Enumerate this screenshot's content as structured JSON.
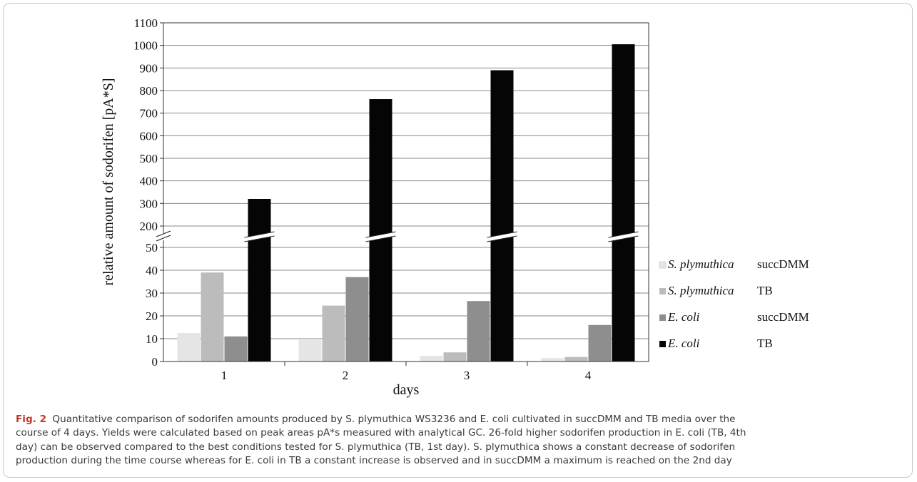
{
  "chart_data": {
    "type": "bar",
    "categories": [
      "1",
      "2",
      "3",
      "4"
    ],
    "xlabel": "days",
    "ylabel": "relative amount of sodorifen  [pA*S]",
    "axis_break": {
      "lower_max": 50,
      "upper_min": 200,
      "upper_max": 1100
    },
    "y_ticks": [
      "0",
      "10",
      "20",
      "30",
      "40",
      "50",
      "200",
      "300",
      "400",
      "500",
      "600",
      "700",
      "800",
      "900",
      "1000",
      "1100"
    ],
    "grid": true,
    "legend_position": "right",
    "series": [
      {
        "name_italic": "S. plymuthica",
        "name_medium": "succDMM",
        "color": "#e5e5e5",
        "values": [
          12.5,
          9.5,
          2.5,
          1.5
        ]
      },
      {
        "name_italic": "S. plymuthica",
        "name_medium": "TB",
        "color": "#bcbcbc",
        "values": [
          39,
          24.5,
          4,
          2
        ]
      },
      {
        "name_italic": "E. coli",
        "name_medium": "succDMM",
        "color": "#8e8e8e",
        "values": [
          11,
          37,
          26.5,
          16
        ]
      },
      {
        "name_italic": "E. coli",
        "name_medium": "TB",
        "color": "#050505",
        "values": [
          320,
          762,
          890,
          1005
        ]
      }
    ]
  },
  "caption": {
    "label": "Fig. 2",
    "lines": [
      "Quantitative comparison of sodorifen amounts produced by S. plymuthica WS3236 and E. coli cultivated in succDMM and TB media over the",
      "course of 4 days. Yields were calculated based on peak areas pA*s measured with analytical GC. 26-fold higher sodorifen production in E. coli (TB, 4th",
      "day) can be observed compared to the best conditions tested for S. plymuthica (TB, 1st day). S. plymuthica shows a constant decrease of sodorifen",
      "production during the time course whereas for E. coli in TB a constant increase is observed and in succDMM a maximum is reached on the 2nd day"
    ]
  }
}
